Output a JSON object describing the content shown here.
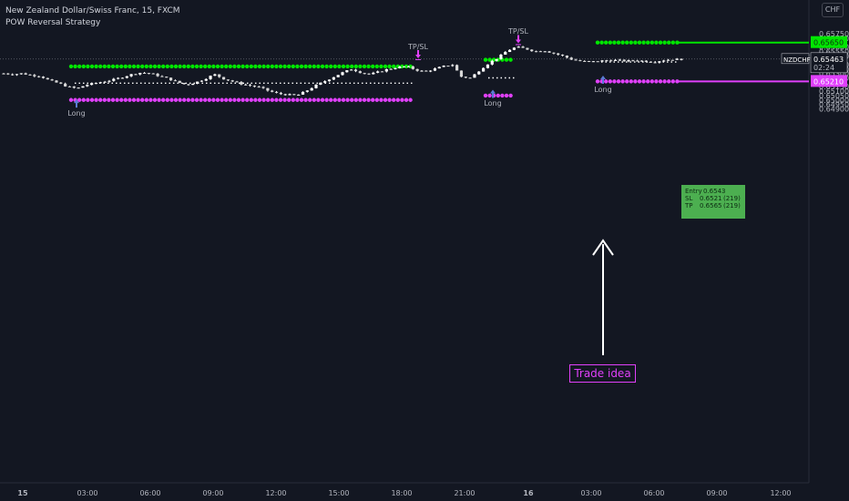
{
  "header": {
    "symbol_line": "New Zealand Dollar/Swiss Franc, 15, FXCM",
    "indicator_line": "POW Reversal Strategy",
    "currency_button": "CHF"
  },
  "colors": {
    "background": "#131722",
    "up_candle": "#ffffff",
    "down_candle": "#ffffff",
    "tp_line": "#00e600",
    "sl_line": "#e040fb",
    "info_box": "#4caf50"
  },
  "price_axis": {
    "ticks": [
      "0.65750",
      "0.65700",
      "0.65600",
      "0.65550",
      "0.65500",
      "0.65400",
      "0.65350",
      "0.65300",
      "0.65250",
      "0.65150",
      "0.65100",
      "0.65050",
      "0.65000",
      "0.64950",
      "0.64900"
    ],
    "current_symbol": "NZDCHF",
    "current_price": "0.65463",
    "countdown": "02:24",
    "tp_label": "0.65650",
    "sl_label": "0.65210"
  },
  "time_axis": {
    "ticks": [
      "15",
      "03:00",
      "06:00",
      "09:00",
      "12:00",
      "15:00",
      "18:00",
      "21:00",
      "16",
      "03:00",
      "06:00",
      "09:00",
      "12:00"
    ]
  },
  "annotations": {
    "signals": [
      "Long",
      "Long",
      "Long"
    ],
    "exits": [
      "TP/SL",
      "TP/SL"
    ],
    "trade_idea": "Trade idea",
    "info": {
      "entry_label": "Entry",
      "entry_value": "0.6543",
      "entry_pips": "",
      "sl_label": "SL",
      "sl_value": "0.6521",
      "sl_pips": "(219)",
      "tp_label": "TP",
      "tp_value": "0.6565",
      "tp_pips": "(219)"
    }
  },
  "chart_data": {
    "type": "candlestick",
    "title": "New Zealand Dollar/Swiss Franc, 15, FXCM",
    "ylim": [
      0.64885,
      0.65785
    ],
    "candles_close_approx": [
      0.653,
      0.6529,
      0.653,
      0.6528,
      0.6527,
      0.6522,
      0.6519,
      0.6515,
      0.6513,
      0.6517,
      0.6519,
      0.6521,
      0.6523,
      0.6526,
      0.6529,
      0.6531,
      0.653,
      0.6527,
      0.6524,
      0.652,
      0.6517,
      0.652,
      0.6524,
      0.6529,
      0.6524,
      0.6521,
      0.6518,
      0.6516,
      0.6514,
      0.651,
      0.6507,
      0.6506,
      0.6505,
      0.651,
      0.6516,
      0.6521,
      0.6526,
      0.6531,
      0.6535,
      0.6531,
      0.6529,
      0.6532,
      0.6535,
      0.6537,
      0.6538,
      0.6534,
      0.6532,
      0.6535,
      0.6538,
      0.654,
      0.6526,
      0.6525,
      0.6534,
      0.6542,
      0.6548,
      0.6556,
      0.656,
      0.6558,
      0.6555,
      0.6556,
      0.6553,
      0.655,
      0.6546,
      0.6544,
      0.6543,
      0.6544,
      0.6545,
      0.6545,
      0.6544,
      0.6545,
      0.6544,
      0.6543,
      0.6545,
      0.6546,
      0.6546
    ],
    "long_signals": [
      {
        "label": "Long",
        "entry": 0.6519,
        "tp": 0.6538,
        "sl": 0.65
      },
      {
        "label": "Long",
        "entry": 0.6525,
        "tp": 0.65455,
        "sl": 0.6505
      },
      {
        "label": "Long",
        "entry": 0.6543,
        "tp": 0.6565,
        "sl": 0.6521
      }
    ],
    "current_price": 0.65463
  }
}
